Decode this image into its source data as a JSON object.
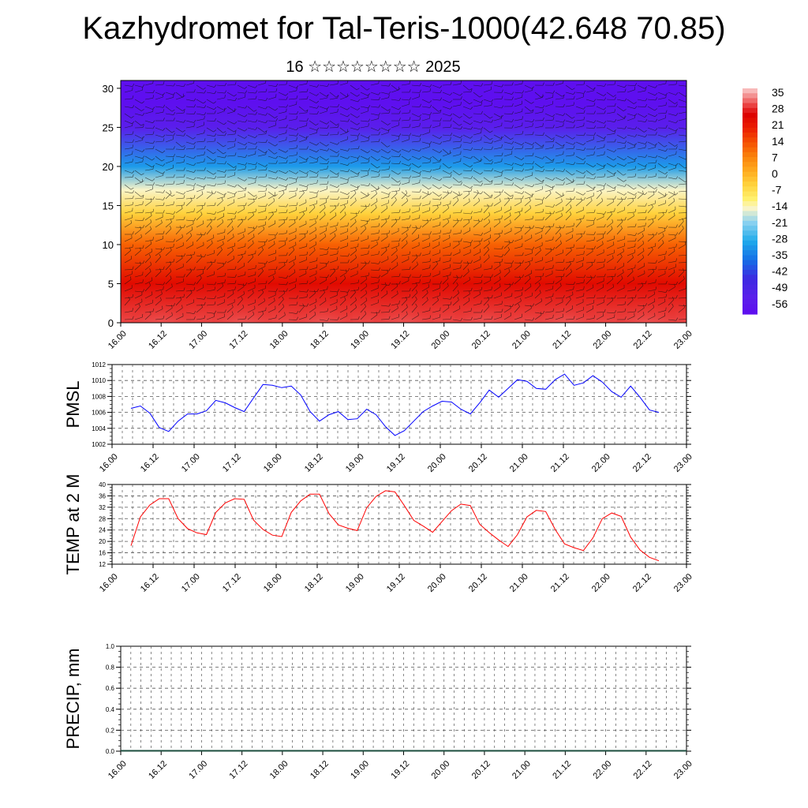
{
  "title": "Kazhydromet for Tal-Teris-1000(42.648 70.85)",
  "subtitle": "16 ☆☆☆☆☆☆☆☆ 2025",
  "chart_data": [
    {
      "type": "heatmap",
      "title": "",
      "ylabel": "",
      "y_ticks": [
        "0",
        "5",
        "10",
        "15",
        "20",
        "25",
        "30"
      ],
      "ylim": [
        0,
        31
      ],
      "x_ticks": [
        "16.00",
        "16.12",
        "17.00",
        "17.12",
        "18.00",
        "18.12",
        "19.00",
        "19.12",
        "20.00",
        "20.12",
        "21.00",
        "21.12",
        "22.00",
        "22.12",
        "23.00"
      ],
      "colorbar_labels": [
        "35",
        "28",
        "21",
        "14",
        "7",
        "0",
        "-7",
        "-14",
        "-21",
        "-28",
        "-35",
        "-42",
        "-49",
        "-56"
      ],
      "vertical_temperature_profile": [
        {
          "level": 0,
          "value": 30
        },
        {
          "level": 5,
          "value": 24
        },
        {
          "level": 10,
          "value": 12
        },
        {
          "level": 14,
          "value": -4
        },
        {
          "level": 17,
          "value": -14
        },
        {
          "level": 20,
          "value": -30
        },
        {
          "level": 25,
          "value": -52
        },
        {
          "level": 28,
          "value": -58
        },
        {
          "level": 31,
          "value": -58
        }
      ],
      "surface_warm_maxima_x": [
        16.5,
        17.5,
        18.5,
        19.5,
        20.5,
        21.5,
        22.5
      ],
      "overlay": "wind barbs"
    },
    {
      "type": "line",
      "ylabel": "PMSL",
      "ylim": [
        1002,
        1012
      ],
      "y_ticks": [
        "1002",
        "1004",
        "1006",
        "1008",
        "1010",
        "1012"
      ],
      "x_ticks": [
        "16.00",
        "16.12",
        "17.00",
        "17.12",
        "18.00",
        "18.12",
        "19.00",
        "19.12",
        "20.00",
        "20.12",
        "21.00",
        "21.12",
        "22.00",
        "22.12",
        "23.00"
      ],
      "series": [
        {
          "color": "#0000ff",
          "values": [
            1006.5,
            1006.8,
            1005.9,
            1004.1,
            1003.6,
            1004.9,
            1005.8,
            1005.8,
            1006.2,
            1007.5,
            1007.2,
            1006.6,
            1006.1,
            1007.8,
            1009.5,
            1009.4,
            1009.1,
            1009.3,
            1008.2,
            1006.1,
            1004.9,
            1005.7,
            1006.1,
            1005.1,
            1005.2,
            1006.4,
            1005.7,
            1004.2,
            1003.1,
            1003.7,
            1004.9,
            1006.1,
            1006.8,
            1007.4,
            1007.3,
            1006.4,
            1005.8,
            1007.2,
            1008.8,
            1007.9,
            1009.0,
            1010.1,
            1009.9,
            1009.0,
            1008.9,
            1010.1,
            1010.8,
            1009.4,
            1009.7,
            1010.6,
            1009.8,
            1008.6,
            1007.9,
            1009.3,
            1007.9,
            1006.3,
            1006.0
          ]
        }
      ]
    },
    {
      "type": "line",
      "ylabel": "TEMP at 2 M",
      "ylim": [
        12,
        40
      ],
      "y_ticks": [
        "12",
        "16",
        "20",
        "24",
        "28",
        "32",
        "36",
        "40"
      ],
      "x_ticks": [
        "16.00",
        "16.12",
        "17.00",
        "17.12",
        "18.00",
        "18.12",
        "19.00",
        "19.12",
        "20.00",
        "20.12",
        "21.00",
        "21.12",
        "22.00",
        "22.12",
        "23.00"
      ],
      "series": [
        {
          "color": "#ff0000",
          "values": [
            18.5,
            28.6,
            32.8,
            35.0,
            35.0,
            28.0,
            24.5,
            23.0,
            22.4,
            30.2,
            33.5,
            35.0,
            34.8,
            27.5,
            24.2,
            22.2,
            21.7,
            30.2,
            34.2,
            36.6,
            36.6,
            29.8,
            25.8,
            24.6,
            23.8,
            31.8,
            35.8,
            37.8,
            37.4,
            32.6,
            27.4,
            25.4,
            23.2,
            27.0,
            30.8,
            33.1,
            32.6,
            26.0,
            23.1,
            20.5,
            18.2,
            22.4,
            28.6,
            30.9,
            30.5,
            24.2,
            19.1,
            17.8,
            16.8,
            21.2,
            28.0,
            30.0,
            28.8,
            21.5,
            17.0,
            14.4,
            13.2
          ]
        }
      ]
    },
    {
      "type": "bar",
      "ylabel": "PRECIP, mm",
      "ylim": [
        0,
        1.0
      ],
      "y_ticks": [
        "0.0",
        "0.2",
        "0.4",
        "0.6",
        "0.8",
        "1.0"
      ],
      "x_ticks": [
        "16.00",
        "16.12",
        "17.00",
        "17.12",
        "18.00",
        "18.12",
        "19.00",
        "19.12",
        "20.00",
        "20.12",
        "21.00",
        "21.12",
        "22.00",
        "22.12",
        "23.00"
      ],
      "values": [
        0,
        0,
        0,
        0,
        0,
        0,
        0,
        0,
        0,
        0,
        0,
        0,
        0,
        0,
        0,
        0,
        0,
        0,
        0,
        0,
        0,
        0,
        0,
        0,
        0,
        0,
        0,
        0,
        0,
        0,
        0,
        0,
        0,
        0,
        0,
        0,
        0,
        0,
        0,
        0,
        0,
        0,
        0,
        0,
        0,
        0,
        0,
        0,
        0,
        0,
        0,
        0,
        0,
        0,
        0,
        0,
        0
      ]
    }
  ]
}
